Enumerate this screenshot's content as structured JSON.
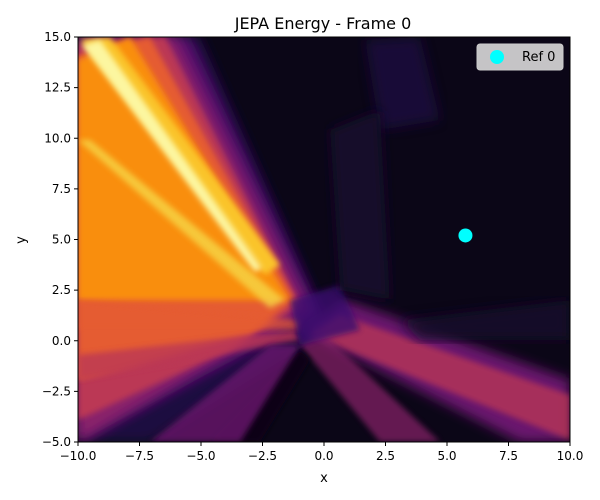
{
  "chart_data": {
    "type": "heatmap",
    "title": "JEPA Energy - Frame 0",
    "xlabel": "x",
    "ylabel": "y",
    "xlim": [
      -10,
      10
    ],
    "ylim": [
      -5,
      15
    ],
    "xticks": [
      -10.0,
      -7.5,
      -5.0,
      -2.5,
      0.0,
      2.5,
      5.0,
      7.5,
      10.0
    ],
    "yticks": [
      -5.0,
      -2.5,
      0.0,
      2.5,
      5.0,
      7.5,
      10.0,
      12.5,
      15.0
    ],
    "xtick_labels": [
      "−10.0",
      "−7.5",
      "−5.0",
      "−2.5",
      "0.0",
      "2.5",
      "5.0",
      "7.5",
      "10.0"
    ],
    "ytick_labels": [
      "−5.0",
      "−2.5",
      "0.0",
      "2.5",
      "5.0",
      "7.5",
      "10.0",
      "12.5",
      "15.0"
    ],
    "colormap": "inferno",
    "series": [
      {
        "name": "Ref 0",
        "type": "scatter",
        "x": [
          5.75
        ],
        "y": [
          5.2
        ],
        "color": "#00ffff"
      }
    ],
    "legend": {
      "position": "top-right",
      "entries": [
        "Ref 0"
      ]
    },
    "grid": false
  }
}
